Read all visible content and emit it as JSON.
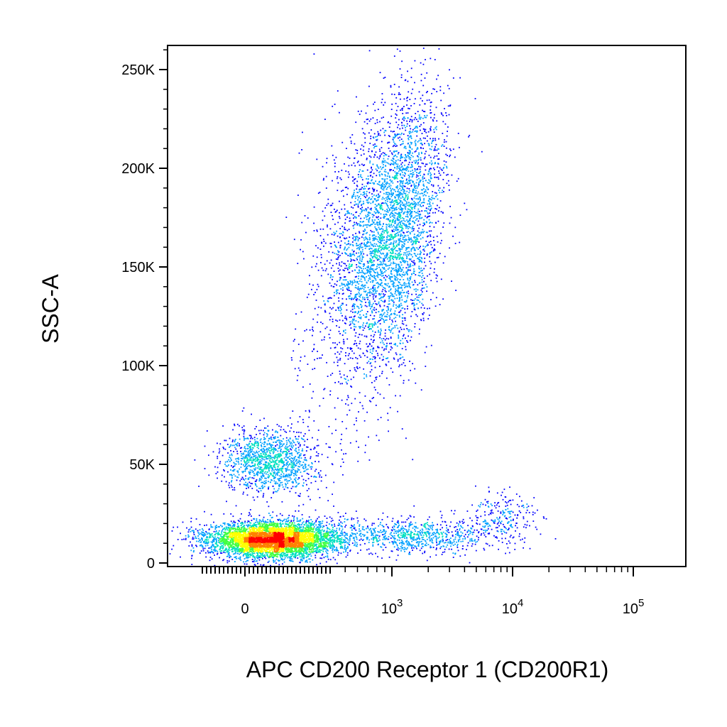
{
  "chart_data": {
    "type": "scatter",
    "plot_style": "flow-cytometry-density-dot-plot",
    "title": "",
    "xlabel": "APC  CD200 Receptor 1 (CD200R1)",
    "ylabel": "SSC-A",
    "x_scale": "biexponential",
    "y_scale": "linear",
    "xlim": [
      -200,
      200000
    ],
    "ylim": [
      -2000,
      262144
    ],
    "grid": false,
    "legend": "none",
    "x_ticks": [
      {
        "value": 0,
        "base": "0",
        "exp": ""
      },
      {
        "value": 1000,
        "base": "10",
        "exp": "3"
      },
      {
        "value": 10000,
        "base": "10",
        "exp": "4"
      },
      {
        "value": 100000,
        "base": "10",
        "exp": "5"
      }
    ],
    "y_ticks": [
      {
        "value": 0,
        "label": "0"
      },
      {
        "value": 50000,
        "label": "50K"
      },
      {
        "value": 100000,
        "label": "100K"
      },
      {
        "value": 150000,
        "label": "150K"
      },
      {
        "value": 200000,
        "label": "200K"
      },
      {
        "value": 250000,
        "label": "250K"
      }
    ],
    "colormap": [
      "#0000ff",
      "#00a0ff",
      "#00e0c0",
      "#40ff40",
      "#ffff00",
      "#ff8000",
      "#ff0000"
    ],
    "populations": [
      {
        "x_center": 950,
        "x_spread": 0.2,
        "y_center": 165000,
        "y_spread": 35000,
        "count": 4200
      },
      {
        "x_center": 120,
        "x_spread": 110,
        "y_center": 52000,
        "y_spread": 8000,
        "count": 1300
      },
      {
        "x_center": 130,
        "x_spread": 150,
        "y_center": 12000,
        "y_spread": 4500,
        "count": 5200
      },
      {
        "x_center": 1500,
        "x_spread": 0.35,
        "y_center": 14000,
        "y_spread": 4500,
        "count": 900
      },
      {
        "x_center": 8500,
        "x_spread": 0.15,
        "y_center": 24000,
        "y_spread": 6000,
        "count": 220
      }
    ]
  }
}
